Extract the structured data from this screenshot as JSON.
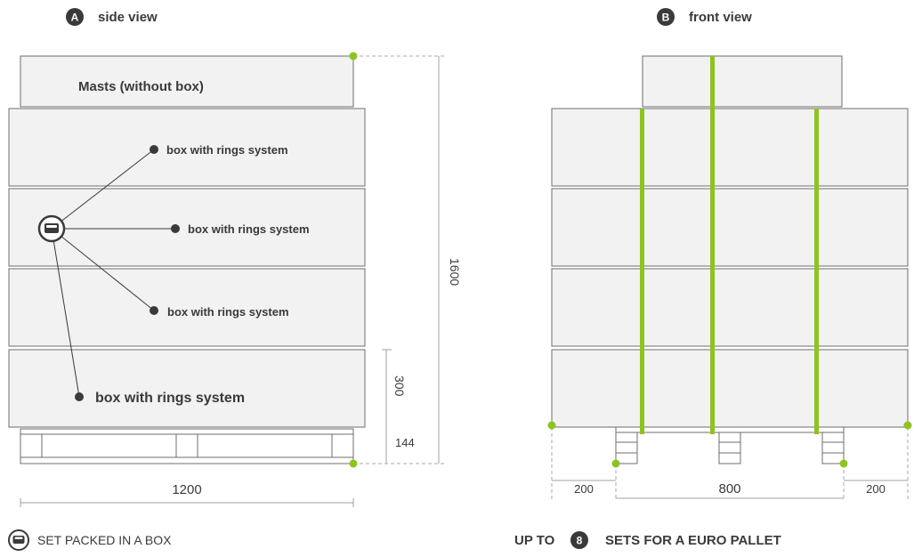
{
  "side_view": {
    "badge": "A",
    "title": "side view",
    "masts_label": "Masts (without box)",
    "box_labels": [
      "box with rings system",
      "box with rings system",
      "box with rings system",
      "box with rings system"
    ],
    "dim_total_height": "1600",
    "dim_box_height": "300",
    "dim_pallet_height": "144",
    "dim_width": "1200"
  },
  "front_view": {
    "badge": "B",
    "title": "front view",
    "dim_left": "200",
    "dim_middle": "800",
    "dim_right": "200"
  },
  "legend": {
    "text": "SET PACKED IN A BOX",
    "icon": "box-icon"
  },
  "capacity": {
    "prefix": "UP TO",
    "count": "8",
    "suffix": "SETS FOR A EURO PALLET"
  },
  "colors": {
    "accent_green": "#8fc31f",
    "box_fill": "#f2f2f2",
    "dark": "#3a3a3a"
  }
}
